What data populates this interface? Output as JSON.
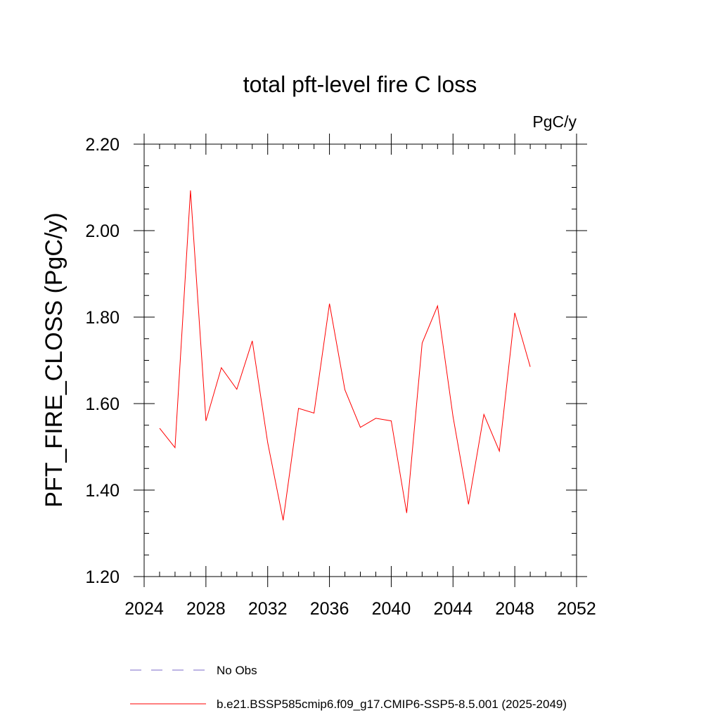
{
  "chart_data": {
    "type": "line",
    "title": "total pft-level fire C loss",
    "units": "PgC/y",
    "xlabel": "",
    "ylabel": "PFT_FIRE_CLOSS  (PgC/y)",
    "xlim": [
      2024,
      2052
    ],
    "ylim": [
      1.2,
      2.2
    ],
    "xticks": [
      2024,
      2028,
      2032,
      2036,
      2040,
      2044,
      2048,
      2052
    ],
    "xtick_labels": [
      "2024",
      "2028",
      "2032",
      "2036",
      "2040",
      "2044",
      "2048",
      "2052"
    ],
    "yticks": [
      1.2,
      1.4,
      1.6,
      1.8,
      2.0,
      2.2
    ],
    "ytick_labels": [
      "1.20",
      "1.40",
      "1.60",
      "1.80",
      "2.00",
      "2.20"
    ],
    "x_minor_step": 1,
    "y_minor_step": 0.05,
    "legend_position": "bottom",
    "series": [
      {
        "name": "No Obs",
        "color": "#7b68c8",
        "style": "dashed",
        "x": [],
        "values": []
      },
      {
        "name": "b.e21.BSSP585cmip6.f09_g17.CMIP6-SSP5-8.5.001 (2025-2049)",
        "color": "#ff0000",
        "style": "solid",
        "x": [
          2025,
          2026,
          2027,
          2028,
          2029,
          2030,
          2031,
          2032,
          2033,
          2034,
          2035,
          2036,
          2037,
          2038,
          2039,
          2040,
          2041,
          2042,
          2043,
          2044,
          2045,
          2046,
          2047,
          2048,
          2049
        ],
        "values": [
          1.543,
          1.498,
          2.093,
          1.56,
          1.683,
          1.633,
          1.745,
          1.51,
          1.33,
          1.589,
          1.578,
          1.831,
          1.632,
          1.545,
          1.566,
          1.56,
          1.347,
          1.74,
          1.826,
          1.57,
          1.367,
          1.575,
          1.49,
          1.81,
          1.685
        ]
      }
    ]
  }
}
